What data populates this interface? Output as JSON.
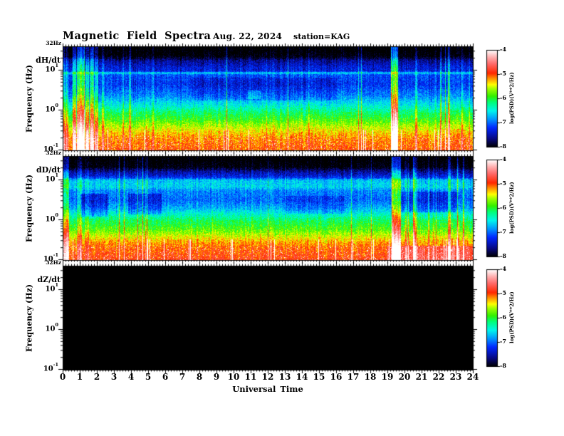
{
  "header": {
    "title": "Magnetic Field Spectra",
    "date": "Aug. 22, 2024",
    "station": "station=KAG"
  },
  "axes": {
    "x_label": "Universal Time",
    "x_ticks": [
      "0",
      "1",
      "2",
      "3",
      "4",
      "5",
      "6",
      "7",
      "8",
      "9",
      "10",
      "11",
      "12",
      "13",
      "14",
      "15",
      "16",
      "17",
      "18",
      "19",
      "20",
      "21",
      "22",
      "23",
      "24"
    ],
    "y_label": "Frequency (Hz)",
    "y_tick_labels": [
      "10^1",
      "10^0",
      "10^-1"
    ],
    "y_top_label": "32Hz"
  },
  "colorbar": {
    "label": "log(PSD)(V**2/Hz)",
    "tick_labels": [
      "-4",
      "-5",
      "-6",
      "-7",
      "-8"
    ]
  },
  "chart_data": {
    "type": "heatmap",
    "subtype": "spectrogram",
    "title": "Magnetic Field Spectra",
    "date": "Aug. 22, 2024",
    "station": "KAG",
    "x_axis": {
      "label": "Universal Time",
      "units": "hours",
      "range": [
        0,
        24
      ],
      "major_tick_step": 1
    },
    "y_axis": {
      "label": "Frequency (Hz)",
      "scale": "log",
      "range_hz": [
        0.1,
        32
      ],
      "tick_labels": [
        "10^1",
        "10^0",
        "10^-1"
      ],
      "top_label": "32Hz"
    },
    "z_axis": {
      "label": "log(PSD)(V**2/Hz)",
      "range": [
        -8,
        -4
      ]
    },
    "colormap": [
      [
        -8.0,
        0,
        0,
        0
      ],
      [
        -7.65,
        8,
        8,
        130
      ],
      [
        -7.2,
        0,
        40,
        255
      ],
      [
        -6.85,
        0,
        150,
        255
      ],
      [
        -6.5,
        0,
        245,
        235
      ],
      [
        -6.15,
        0,
        255,
        120
      ],
      [
        -5.9,
        50,
        240,
        0
      ],
      [
        -5.6,
        160,
        255,
        0
      ],
      [
        -5.42,
        255,
        255,
        0
      ],
      [
        -5.18,
        255,
        150,
        0
      ],
      [
        -4.95,
        255,
        40,
        0
      ],
      [
        -4.55,
        255,
        110,
        110
      ],
      [
        -4.25,
        255,
        185,
        185
      ],
      [
        -4.0,
        255,
        255,
        255
      ]
    ],
    "panels": [
      {
        "component": "dH/dt",
        "sample_rate": "32Hz",
        "no_data": false,
        "description": "Broadband PSD rising toward low frequency: black above ~13 Hz, narrow cyan band at 10 Hz, blue 2-8 Hz, green ~0.5-1 Hz, yellow-red below 0.5 Hz; strong broadband bursts 00:30-02:00 UT and ~19:20 UT.",
        "profile": [
          [
            0,
            -8.2
          ],
          [
            0.09,
            -8.05
          ],
          [
            0.13,
            -7.6
          ],
          [
            0.2,
            -7.35
          ],
          [
            0.235,
            -7.3
          ],
          [
            0.25,
            -6.55
          ],
          [
            0.27,
            -7.1
          ],
          [
            0.36,
            -7.2
          ],
          [
            0.47,
            -6.9
          ],
          [
            0.56,
            -6.5
          ],
          [
            0.63,
            -6.15
          ],
          [
            0.7,
            -5.9
          ],
          [
            0.76,
            -5.6
          ],
          [
            0.82,
            -5.35
          ],
          [
            0.88,
            -5.15
          ],
          [
            1,
            -5.0
          ]
        ],
        "events": [
          {
            "t_start": 0.0,
            "t_end": 0.3,
            "amplitude": 0.9
          },
          {
            "t_start": 0.55,
            "t_end": 0.75,
            "amplitude": 1.6
          },
          {
            "t_start": 0.8,
            "t_end": 1.25,
            "amplitude": 2.4
          },
          {
            "t_start": 1.3,
            "t_end": 1.5,
            "amplitude": 1.2
          },
          {
            "t_start": 1.55,
            "t_end": 1.8,
            "amplitude": 1.8
          },
          {
            "t_start": 1.85,
            "t_end": 2.05,
            "amplitude": 1.0
          },
          {
            "t_start": 2.25,
            "t_end": 2.4,
            "amplitude": 1.1
          },
          {
            "t_start": 3.45,
            "t_end": 3.55,
            "amplitude": 0.8
          },
          {
            "t_start": 3.85,
            "t_end": 3.95,
            "amplitude": 0.9
          },
          {
            "t_start": 5.2,
            "t_end": 5.3,
            "amplitude": 0.6
          },
          {
            "t_start": 10.8,
            "t_end": 11.6,
            "amplitude": 0.45,
            "f_start": 0.42,
            "f_end": 0.5
          },
          {
            "t_start": 14.3,
            "t_end": 14.45,
            "amplitude": 0.5
          },
          {
            "t_start": 19.2,
            "t_end": 19.6,
            "amplitude": 2.4
          },
          {
            "t_start": 20.6,
            "t_end": 20.75,
            "amplitude": 1.1
          },
          {
            "t_start": 22.55,
            "t_end": 22.68,
            "amplitude": 1.3
          },
          {
            "t_start": 23.3,
            "t_end": 23.4,
            "amplitude": 0.7
          },
          {
            "t_start": 7.5,
            "t_end": 16.0,
            "amplitude": -0.25,
            "f_start": 0.3,
            "f_end": 0.52
          }
        ]
      },
      {
        "component": "dD/dt",
        "sample_rate": "32Hz",
        "no_data": false,
        "description": "Similar banded spectrum with wide cyan band near 8-10 Hz, patchy blue 2-6 Hz, green-yellow-red toward low frequency; bursts near 00:00-00:20, 19:20-19:40, 20:30, 22:30 UT; heavy white saturation at lowest frequencies.",
        "profile": [
          [
            0,
            -8.2
          ],
          [
            0.1,
            -8.05
          ],
          [
            0.14,
            -7.6
          ],
          [
            0.2,
            -7.25
          ],
          [
            0.225,
            -6.7
          ],
          [
            0.29,
            -6.6
          ],
          [
            0.33,
            -6.9
          ],
          [
            0.42,
            -7.0
          ],
          [
            0.5,
            -6.75
          ],
          [
            0.55,
            -6.45
          ],
          [
            0.62,
            -6.1
          ],
          [
            0.7,
            -5.85
          ],
          [
            0.76,
            -5.55
          ],
          [
            0.82,
            -5.25
          ],
          [
            0.88,
            -5.05
          ],
          [
            1,
            -4.9
          ]
        ],
        "events": [
          {
            "t_start": 0.0,
            "t_end": 0.35,
            "amplitude": 1.3
          },
          {
            "t_start": 0.8,
            "t_end": 1.1,
            "amplitude": 0.7
          },
          {
            "t_start": 1.3,
            "t_end": 1.5,
            "amplitude": 0.6
          },
          {
            "t_start": 19.25,
            "t_end": 19.7,
            "amplitude": 2.2
          },
          {
            "t_start": 20.5,
            "t_end": 20.7,
            "amplitude": 1.5
          },
          {
            "t_start": 21.35,
            "t_end": 21.45,
            "amplitude": 0.9
          },
          {
            "t_start": 22.55,
            "t_end": 22.7,
            "amplitude": 1.4
          },
          {
            "t_start": 23.1,
            "t_end": 23.2,
            "amplitude": 0.6
          },
          {
            "t_start": 19.0,
            "t_end": 24.0,
            "amplitude": 0.5,
            "f_start": 0.86,
            "f_end": 1.0
          },
          {
            "t_start": 1.0,
            "t_end": 2.6,
            "amplitude": -0.6,
            "f_start": 0.36,
            "f_end": 0.58
          },
          {
            "t_start": 3.8,
            "t_end": 5.8,
            "amplitude": -0.45,
            "f_start": 0.36,
            "f_end": 0.56
          },
          {
            "t_start": 13.0,
            "t_end": 16.5,
            "amplitude": -0.3,
            "f_start": 0.38,
            "f_end": 0.55
          },
          {
            "t_start": 19.8,
            "t_end": 23.2,
            "amplitude": -0.45,
            "f_start": 0.34,
            "f_end": 0.54
          }
        ]
      },
      {
        "component": "dZ/dt",
        "sample_rate": "32Hz",
        "no_data": true,
        "description": "No data — panel entirely black.",
        "profile": [
          [
            0,
            -8.5
          ],
          [
            1,
            -8.5
          ]
        ],
        "events": []
      }
    ]
  }
}
